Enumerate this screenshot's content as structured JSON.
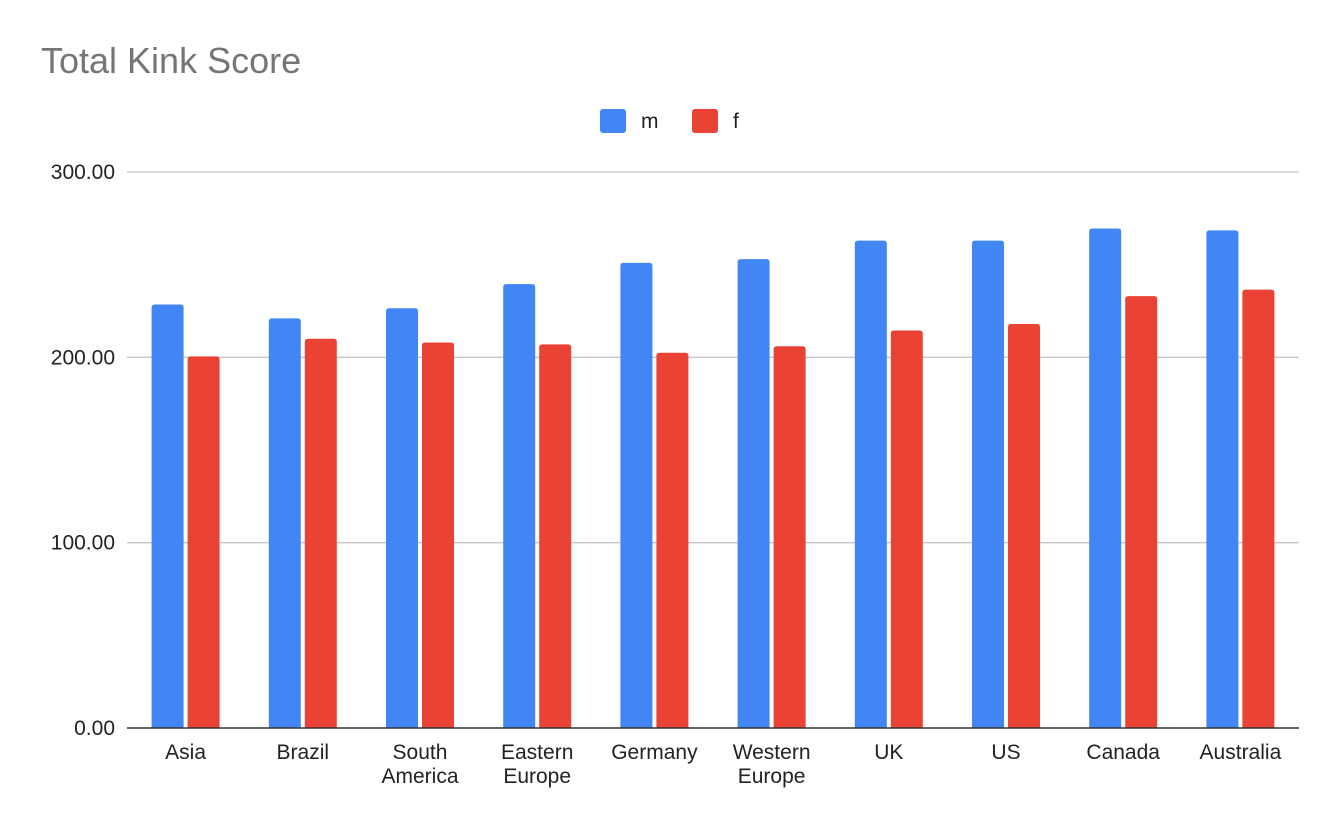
{
  "chart_data": {
    "type": "bar",
    "title": "Total Kink Score",
    "xlabel": "",
    "ylabel": "",
    "ylim": [
      0,
      300
    ],
    "y_ticks": [
      "0.00",
      "100.00",
      "200.00",
      "300.00"
    ],
    "y_tick_values": [
      0,
      100,
      200,
      300
    ],
    "grid": true,
    "legend_position": "top-center",
    "categories": [
      [
        "Asia"
      ],
      [
        "Brazil"
      ],
      [
        "South",
        "America"
      ],
      [
        "Eastern",
        "Europe"
      ],
      [
        "Germany"
      ],
      [
        "Western",
        "Europe"
      ],
      [
        "UK"
      ],
      [
        "US"
      ],
      [
        "Canada"
      ],
      [
        "Australia"
      ]
    ],
    "series": [
      {
        "name": "m",
        "color": "#4285f4",
        "values": [
          228.5,
          221,
          226.5,
          239.5,
          251,
          253,
          263,
          263,
          269.5,
          268.5
        ]
      },
      {
        "name": "f",
        "color": "#ea4335",
        "values": [
          200.5,
          210,
          208,
          207,
          202.5,
          206,
          214.5,
          218,
          233,
          236.5
        ]
      }
    ]
  }
}
